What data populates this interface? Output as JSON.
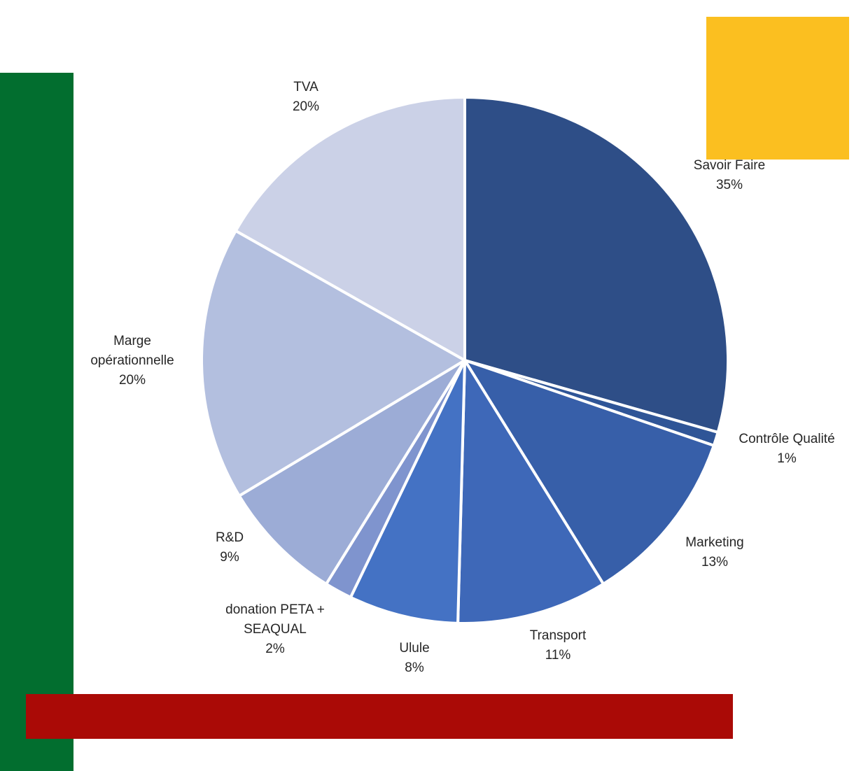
{
  "decorations": {
    "green_bar_color": "#026E2F",
    "yellow_square_color": "#FBBF20",
    "red_bar_color": "#AA0A06"
  },
  "chart_data": {
    "type": "pie",
    "title": "",
    "start_angle_deg": 0,
    "direction": "clockwise",
    "slices": [
      {
        "label": [
          "Savoir Faire"
        ],
        "value": 35,
        "display": "35%",
        "color": "#2E4E87"
      },
      {
        "label": [
          "Contrôle Qualité"
        ],
        "value": 1,
        "display": "1%",
        "color": "#2F5597"
      },
      {
        "label": [
          "Marketing"
        ],
        "value": 13,
        "display": "13%",
        "color": "#375FA9"
      },
      {
        "label": [
          "Transport"
        ],
        "value": 11,
        "display": "11%",
        "color": "#3E68B8"
      },
      {
        "label": [
          "Ulule"
        ],
        "value": 8,
        "display": "8%",
        "color": "#4472C4"
      },
      {
        "label": [
          "donation PETA +",
          "SEAQUAL"
        ],
        "value": 2,
        "display": "2%",
        "color": "#7F94CE"
      },
      {
        "label": [
          "R&D"
        ],
        "value": 9,
        "display": "9%",
        "color": "#9CACD6"
      },
      {
        "label": [
          "Marge",
          "opérationnelle"
        ],
        "value": 20,
        "display": "20%",
        "color": "#B3BFDF"
      },
      {
        "label": [
          "TVA"
        ],
        "value": 20,
        "display": "20%",
        "color": "#CBD1E7"
      }
    ]
  }
}
